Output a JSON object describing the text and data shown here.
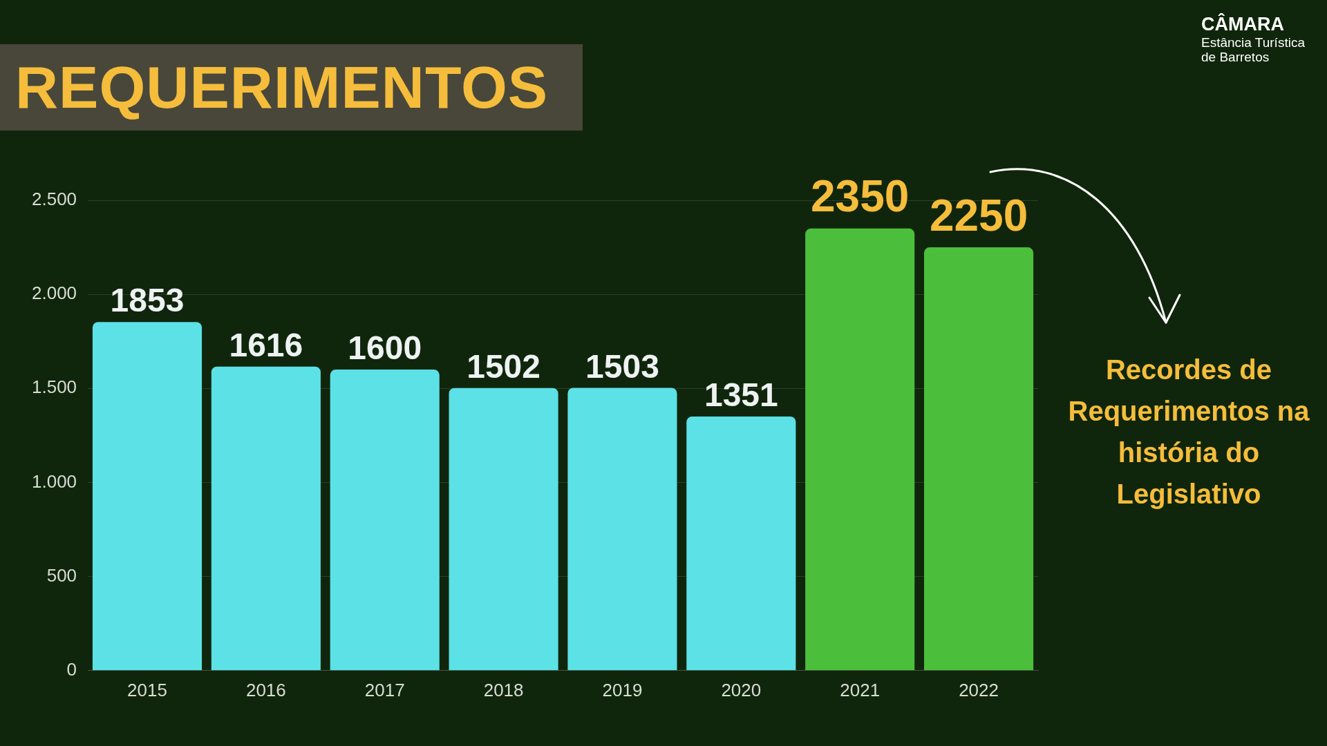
{
  "chart_data": {
    "type": "bar",
    "title": "REQUERIMENTOS",
    "categories": [
      "2015",
      "2016",
      "2017",
      "2018",
      "2019",
      "2020",
      "2021",
      "2022"
    ],
    "values": [
      1853,
      1616,
      1600,
      1502,
      1503,
      1351,
      2350,
      2250
    ],
    "colors": [
      "#5ce1e6",
      "#5ce1e6",
      "#5ce1e6",
      "#5ce1e6",
      "#5ce1e6",
      "#5ce1e6",
      "#4bbf3b",
      "#4bbf3b"
    ],
    "ylim": [
      0,
      2500
    ],
    "yticks": [
      0,
      500,
      {
        "value": 1000,
        "label": "1.000"
      },
      {
        "value": 1500,
        "label": "1.500"
      },
      {
        "value": 2000,
        "label": "2.000"
      },
      {
        "value": 2500,
        "label": "2.500"
      }
    ],
    "grid": "y",
    "data_labels": true,
    "annotations": [
      "Recordes de Requerimentos na história do Legislativo",
      "CÂMARA",
      "Estância Turística de Barretos"
    ]
  }
}
